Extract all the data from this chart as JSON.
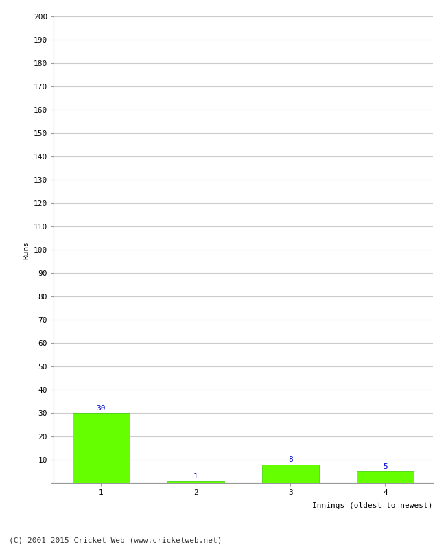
{
  "categories": [
    "1",
    "2",
    "3",
    "4"
  ],
  "values": [
    30,
    1,
    8,
    5
  ],
  "bar_color": "#66ff00",
  "bar_edge_color": "#33cc00",
  "value_label_color": "#0000cc",
  "value_label_fontsize": 8,
  "xlabel": "Innings (oldest to newest)",
  "ylabel": "Runs",
  "ylim": [
    0,
    200
  ],
  "yticks": [
    0,
    10,
    20,
    30,
    40,
    50,
    60,
    70,
    80,
    90,
    100,
    110,
    120,
    130,
    140,
    150,
    160,
    170,
    180,
    190,
    200
  ],
  "grid_color": "#cccccc",
  "background_color": "#ffffff",
  "footer_text": "(C) 2001-2015 Cricket Web (www.cricketweb.net)",
  "footer_fontsize": 8,
  "xlabel_fontsize": 8,
  "ylabel_fontsize": 8,
  "tick_fontsize": 8
}
